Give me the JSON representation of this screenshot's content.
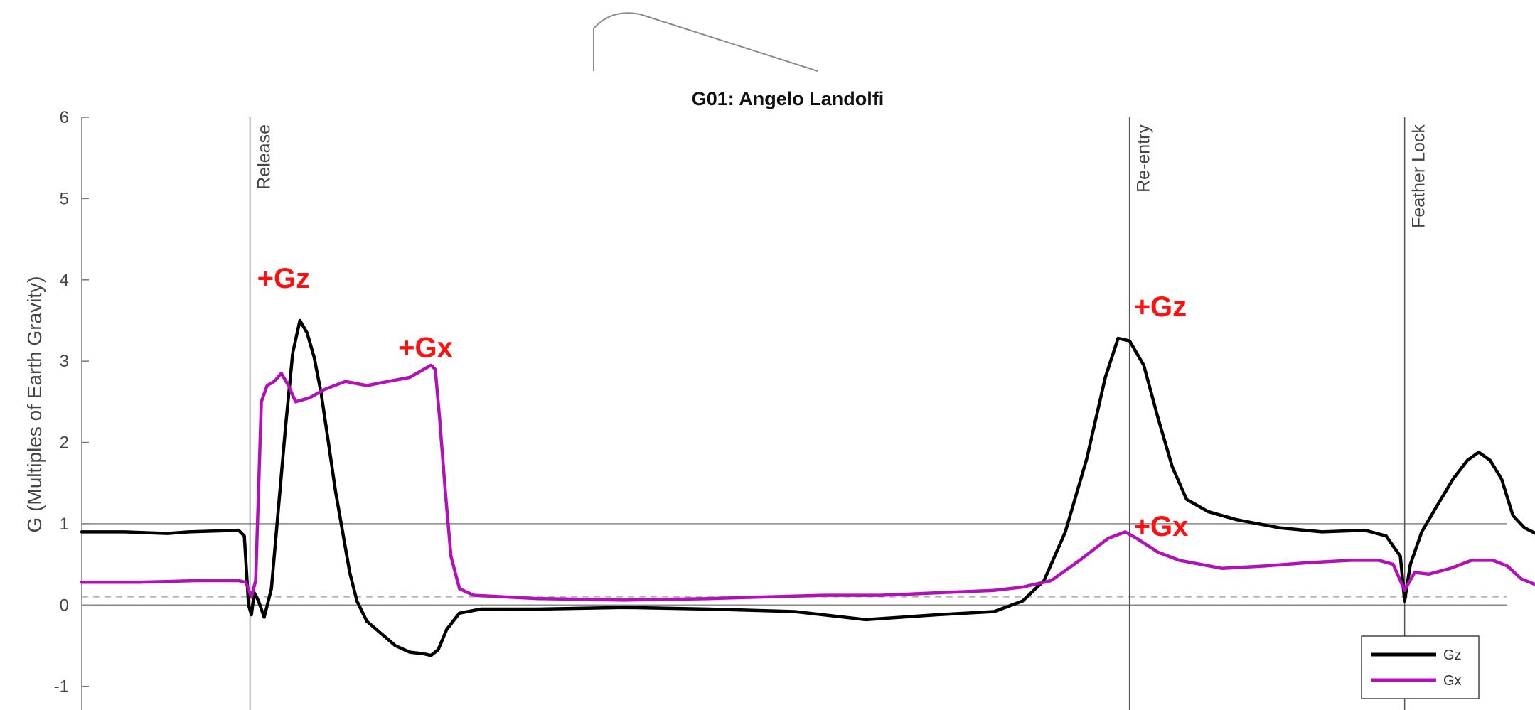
{
  "chart_data": {
    "type": "line",
    "title": "G01: Angelo Landolfi",
    "ylabel": "G (Multiples of Earth Gravity)",
    "xlabel": "",
    "xlim": [
      0,
      1000
    ],
    "ylim": [
      -1.3,
      6
    ],
    "yticks": [
      -1,
      0,
      1,
      2,
      3,
      4,
      5,
      6
    ],
    "grid": false,
    "legend_position": "bottom-right",
    "reference_lines": [
      {
        "y": 1,
        "style": "solid"
      },
      {
        "y": 0,
        "style": "solid"
      },
      {
        "y": 0.1,
        "style": "dashed"
      }
    ],
    "events": [
      {
        "x": 118,
        "label": "Release"
      },
      {
        "x": 735,
        "label": "Re-entry"
      },
      {
        "x": 928,
        "label": "Feather Lock"
      }
    ],
    "series": [
      {
        "name": "Gz",
        "color": "#000000",
        "points": [
          [
            0,
            0.9
          ],
          [
            30,
            0.9
          ],
          [
            60,
            0.88
          ],
          [
            75,
            0.9
          ],
          [
            110,
            0.92
          ],
          [
            114,
            0.85
          ],
          [
            117,
            0
          ],
          [
            119,
            -0.12
          ],
          [
            121,
            0.15
          ],
          [
            124,
            0.05
          ],
          [
            128,
            -0.15
          ],
          [
            133,
            0.2
          ],
          [
            138,
            1.2
          ],
          [
            143,
            2.2
          ],
          [
            148,
            3.1
          ],
          [
            153,
            3.5
          ],
          [
            158,
            3.35
          ],
          [
            163,
            3.05
          ],
          [
            168,
            2.6
          ],
          [
            173,
            2.0
          ],
          [
            178,
            1.4
          ],
          [
            183,
            0.9
          ],
          [
            188,
            0.4
          ],
          [
            193,
            0.05
          ],
          [
            200,
            -0.2
          ],
          [
            210,
            -0.35
          ],
          [
            220,
            -0.5
          ],
          [
            230,
            -0.58
          ],
          [
            240,
            -0.6
          ],
          [
            245,
            -0.62
          ],
          [
            250,
            -0.55
          ],
          [
            256,
            -0.3
          ],
          [
            265,
            -0.1
          ],
          [
            280,
            -0.05
          ],
          [
            320,
            -0.05
          ],
          [
            380,
            -0.03
          ],
          [
            440,
            -0.05
          ],
          [
            500,
            -0.08
          ],
          [
            550,
            -0.18
          ],
          [
            600,
            -0.12
          ],
          [
            640,
            -0.08
          ],
          [
            660,
            0.05
          ],
          [
            675,
            0.3
          ],
          [
            690,
            0.9
          ],
          [
            705,
            1.8
          ],
          [
            718,
            2.8
          ],
          [
            727,
            3.28
          ],
          [
            735,
            3.25
          ],
          [
            745,
            2.95
          ],
          [
            755,
            2.3
          ],
          [
            765,
            1.7
          ],
          [
            775,
            1.3
          ],
          [
            790,
            1.15
          ],
          [
            810,
            1.05
          ],
          [
            840,
            0.95
          ],
          [
            870,
            0.9
          ],
          [
            900,
            0.92
          ],
          [
            915,
            0.85
          ],
          [
            925,
            0.6
          ],
          [
            928,
            0.05
          ],
          [
            932,
            0.5
          ],
          [
            940,
            0.9
          ],
          [
            950,
            1.2
          ],
          [
            962,
            1.55
          ],
          [
            972,
            1.78
          ],
          [
            980,
            1.88
          ],
          [
            988,
            1.78
          ],
          [
            996,
            1.55
          ],
          [
            1004,
            1.1
          ],
          [
            1012,
            0.95
          ],
          [
            1020,
            0.88
          ]
        ]
      },
      {
        "name": "Gx",
        "color": "#b012b8",
        "points": [
          [
            0,
            0.28
          ],
          [
            40,
            0.28
          ],
          [
            80,
            0.3
          ],
          [
            110,
            0.3
          ],
          [
            115,
            0.28
          ],
          [
            119,
            0.1
          ],
          [
            122,
            0.3
          ],
          [
            126,
            2.5
          ],
          [
            130,
            2.7
          ],
          [
            135,
            2.75
          ],
          [
            140,
            2.85
          ],
          [
            145,
            2.7
          ],
          [
            150,
            2.5
          ],
          [
            160,
            2.55
          ],
          [
            170,
            2.65
          ],
          [
            185,
            2.75
          ],
          [
            200,
            2.7
          ],
          [
            215,
            2.75
          ],
          [
            230,
            2.8
          ],
          [
            240,
            2.9
          ],
          [
            245,
            2.95
          ],
          [
            248,
            2.9
          ],
          [
            251,
            2.3
          ],
          [
            255,
            1.4
          ],
          [
            259,
            0.6
          ],
          [
            265,
            0.2
          ],
          [
            275,
            0.12
          ],
          [
            320,
            0.08
          ],
          [
            380,
            0.06
          ],
          [
            440,
            0.08
          ],
          [
            480,
            0.1
          ],
          [
            520,
            0.12
          ],
          [
            560,
            0.12
          ],
          [
            600,
            0.15
          ],
          [
            640,
            0.18
          ],
          [
            660,
            0.22
          ],
          [
            680,
            0.3
          ],
          [
            700,
            0.55
          ],
          [
            720,
            0.82
          ],
          [
            732,
            0.9
          ],
          [
            740,
            0.82
          ],
          [
            755,
            0.65
          ],
          [
            770,
            0.55
          ],
          [
            785,
            0.5
          ],
          [
            800,
            0.45
          ],
          [
            830,
            0.48
          ],
          [
            860,
            0.52
          ],
          [
            890,
            0.55
          ],
          [
            910,
            0.55
          ],
          [
            920,
            0.5
          ],
          [
            928,
            0.18
          ],
          [
            935,
            0.4
          ],
          [
            945,
            0.38
          ],
          [
            960,
            0.45
          ],
          [
            975,
            0.55
          ],
          [
            990,
            0.55
          ],
          [
            1000,
            0.48
          ],
          [
            1010,
            0.32
          ],
          [
            1020,
            0.25
          ]
        ]
      }
    ]
  },
  "annotations": [
    {
      "text": "+Gz",
      "x": 123,
      "y": 3.9
    },
    {
      "text": "+Gx",
      "x": 222,
      "y": 3.05
    },
    {
      "text": "+Gz",
      "x": 738,
      "y": 3.55
    },
    {
      "text": "+Gx",
      "x": 738,
      "y": 0.85
    }
  ],
  "legend": {
    "items": [
      {
        "label": "Gz",
        "color": "#000000"
      },
      {
        "label": "Gx",
        "color": "#b012b8"
      }
    ]
  }
}
